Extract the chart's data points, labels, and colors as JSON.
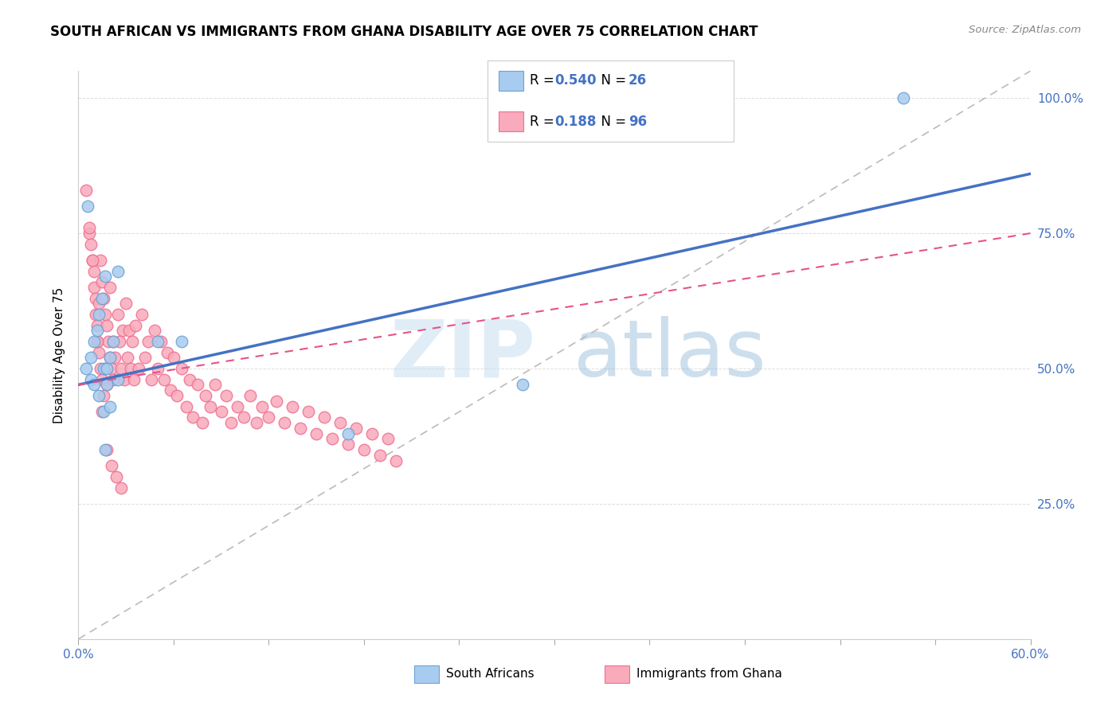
{
  "title": "SOUTH AFRICAN VS IMMIGRANTS FROM GHANA DISABILITY AGE OVER 75 CORRELATION CHART",
  "source": "Source: ZipAtlas.com",
  "ylabel": "Disability Age Over 75",
  "xlim": [
    0.0,
    0.6
  ],
  "ylim": [
    0.0,
    1.05
  ],
  "xticks": [
    0.0,
    0.06,
    0.12,
    0.18,
    0.24,
    0.3,
    0.36,
    0.42,
    0.48,
    0.54,
    0.6
  ],
  "ytick_positions": [
    0.25,
    0.5,
    0.75,
    1.0
  ],
  "right_yticklabels": [
    "25.0%",
    "50.0%",
    "75.0%",
    "100.0%"
  ],
  "south_africans_R": 0.54,
  "south_africans_N": 26,
  "immigrants_R": 0.188,
  "immigrants_N": 96,
  "sa_color": "#A8CCEF",
  "sa_edge_color": "#6BA3D6",
  "imm_color": "#F9AABB",
  "imm_edge_color": "#F07090",
  "sa_line_color": "#4472C4",
  "imm_line_color": "#E8528A",
  "dashed_line_color": "#BBBBBB",
  "watermark_zip": "ZIP",
  "watermark_atlas": "atlas",
  "sa_line_x0": 0.0,
  "sa_line_y0": 0.47,
  "sa_line_x1": 0.6,
  "sa_line_y1": 0.86,
  "imm_line_x0": 0.0,
  "imm_line_y0": 0.47,
  "imm_line_x1": 0.6,
  "imm_line_y1": 0.75,
  "south_africans_x": [
    0.005,
    0.008,
    0.008,
    0.01,
    0.01,
    0.012,
    0.013,
    0.013,
    0.015,
    0.016,
    0.016,
    0.017,
    0.017,
    0.018,
    0.018,
    0.02,
    0.02,
    0.022,
    0.025,
    0.025,
    0.05,
    0.065,
    0.17,
    0.28,
    0.52,
    0.006
  ],
  "south_africans_y": [
    0.5,
    0.52,
    0.48,
    0.55,
    0.47,
    0.57,
    0.6,
    0.45,
    0.63,
    0.5,
    0.42,
    0.67,
    0.35,
    0.5,
    0.47,
    0.52,
    0.43,
    0.55,
    0.68,
    0.48,
    0.55,
    0.55,
    0.38,
    0.47,
    1.0,
    0.8
  ],
  "immigrants_x": [
    0.005,
    0.007,
    0.008,
    0.009,
    0.01,
    0.01,
    0.011,
    0.011,
    0.012,
    0.012,
    0.013,
    0.013,
    0.014,
    0.014,
    0.015,
    0.015,
    0.016,
    0.016,
    0.017,
    0.017,
    0.018,
    0.018,
    0.019,
    0.02,
    0.02,
    0.021,
    0.022,
    0.022,
    0.023,
    0.025,
    0.026,
    0.027,
    0.028,
    0.029,
    0.03,
    0.031,
    0.032,
    0.033,
    0.034,
    0.035,
    0.036,
    0.038,
    0.04,
    0.042,
    0.044,
    0.046,
    0.048,
    0.05,
    0.052,
    0.054,
    0.056,
    0.058,
    0.06,
    0.062,
    0.065,
    0.068,
    0.07,
    0.072,
    0.075,
    0.078,
    0.08,
    0.083,
    0.086,
    0.09,
    0.093,
    0.096,
    0.1,
    0.104,
    0.108,
    0.112,
    0.116,
    0.12,
    0.125,
    0.13,
    0.135,
    0.14,
    0.145,
    0.15,
    0.155,
    0.16,
    0.165,
    0.17,
    0.175,
    0.18,
    0.185,
    0.19,
    0.195,
    0.2,
    0.007,
    0.009,
    0.012,
    0.015,
    0.018,
    0.021,
    0.024,
    0.027
  ],
  "immigrants_y": [
    0.83,
    0.75,
    0.73,
    0.7,
    0.68,
    0.65,
    0.63,
    0.6,
    0.58,
    0.55,
    0.62,
    0.53,
    0.7,
    0.5,
    0.66,
    0.48,
    0.63,
    0.45,
    0.6,
    0.5,
    0.58,
    0.47,
    0.55,
    0.65,
    0.52,
    0.5,
    0.55,
    0.48,
    0.52,
    0.6,
    0.55,
    0.5,
    0.57,
    0.48,
    0.62,
    0.52,
    0.57,
    0.5,
    0.55,
    0.48,
    0.58,
    0.5,
    0.6,
    0.52,
    0.55,
    0.48,
    0.57,
    0.5,
    0.55,
    0.48,
    0.53,
    0.46,
    0.52,
    0.45,
    0.5,
    0.43,
    0.48,
    0.41,
    0.47,
    0.4,
    0.45,
    0.43,
    0.47,
    0.42,
    0.45,
    0.4,
    0.43,
    0.41,
    0.45,
    0.4,
    0.43,
    0.41,
    0.44,
    0.4,
    0.43,
    0.39,
    0.42,
    0.38,
    0.41,
    0.37,
    0.4,
    0.36,
    0.39,
    0.35,
    0.38,
    0.34,
    0.37,
    0.33,
    0.76,
    0.7,
    0.55,
    0.42,
    0.35,
    0.32,
    0.3,
    0.28
  ]
}
